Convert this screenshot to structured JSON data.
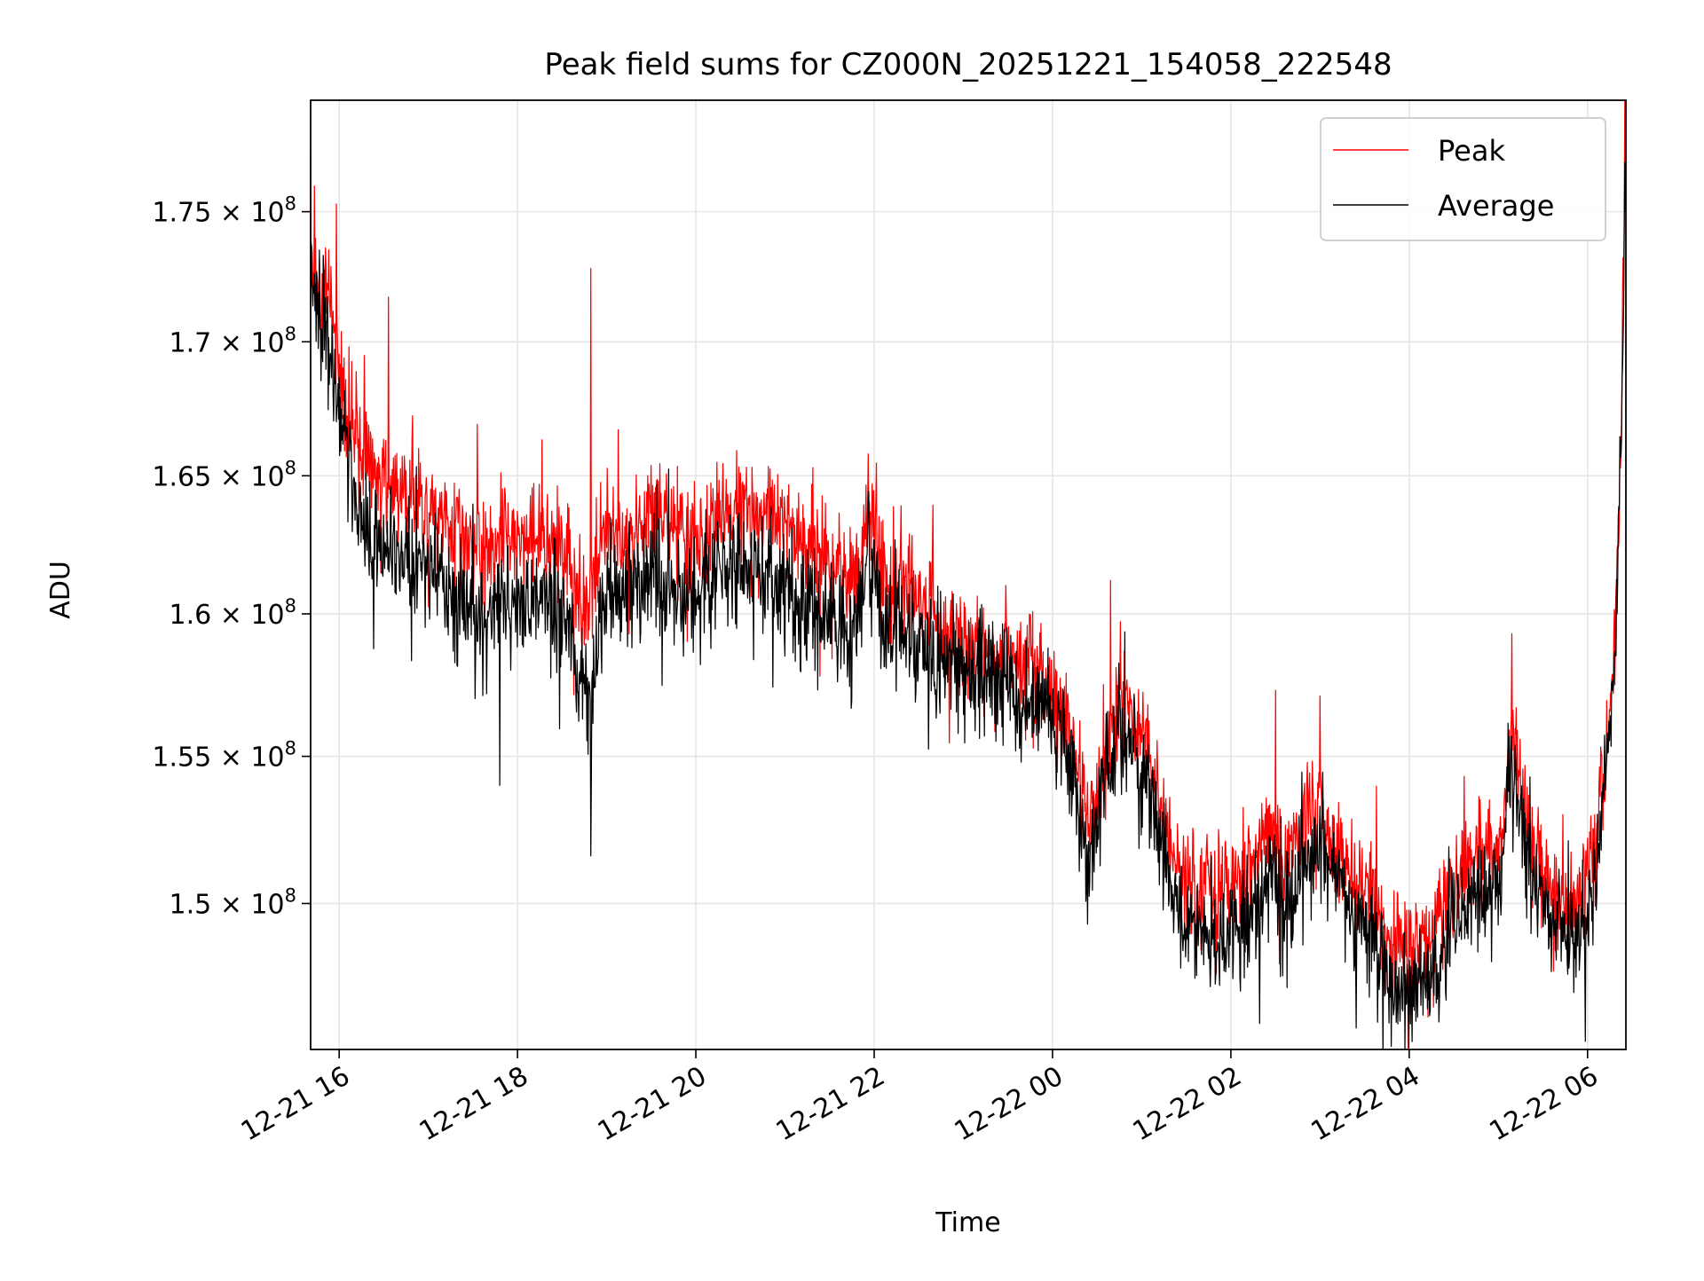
{
  "chart_data": {
    "type": "line",
    "title": "Peak field sums for CZ000N_20251221_154058_222548",
    "xlabel": "Time",
    "ylabel": "ADU",
    "x_unit": "hours since 2025-12-21 00:00",
    "xlim": [
      15.68,
      30.43
    ],
    "ylim": [
      145200000,
      179400000
    ],
    "y_scale": "log",
    "grid": true,
    "legend_position": "upper right",
    "x_ticks": [
      {
        "value": 16,
        "label": "12-21 16"
      },
      {
        "value": 18,
        "label": "12-21 18"
      },
      {
        "value": 20,
        "label": "12-21 20"
      },
      {
        "value": 22,
        "label": "12-21 22"
      },
      {
        "value": 24,
        "label": "12-22 00"
      },
      {
        "value": 26,
        "label": "12-22 02"
      },
      {
        "value": 28,
        "label": "12-22 04"
      },
      {
        "value": 30,
        "label": "12-22 06"
      }
    ],
    "y_ticks": [
      {
        "value": 150000000,
        "mantissa": "1.5"
      },
      {
        "value": 155000000,
        "mantissa": "1.55"
      },
      {
        "value": 160000000,
        "mantissa": "1.6"
      },
      {
        "value": 165000000,
        "mantissa": "1.65"
      },
      {
        "value": 170000000,
        "mantissa": "1.7"
      },
      {
        "value": 175000000,
        "mantissa": "1.75"
      }
    ],
    "y_tick_suffix": "× 10",
    "y_tick_exponent": "8",
    "series": [
      {
        "name": "Peak",
        "color": "#ff0000",
        "noise": 1.2,
        "spikes": [
          [
            15.68,
            177200000
          ],
          [
            15.72,
            176000000
          ],
          [
            15.97,
            175300000
          ],
          [
            16.55,
            171700000
          ],
          [
            17.55,
            166900000
          ],
          [
            18.82,
            172800000
          ],
          [
            20.5,
            165100000
          ],
          [
            21.93,
            165800000
          ],
          [
            24.65,
            161200000
          ],
          [
            26.5,
            157300000
          ],
          [
            27.0,
            157100000
          ],
          [
            29.15,
            159300000
          ],
          [
            30.42,
            179400000
          ]
        ],
        "x": [
          15.68,
          15.75,
          15.85,
          15.93,
          16.0,
          16.15,
          16.3,
          16.5,
          16.8,
          17.1,
          17.3,
          17.6,
          17.8,
          18.0,
          18.3,
          18.55,
          18.7,
          18.8,
          18.95,
          19.2,
          19.5,
          19.8,
          20.0,
          20.3,
          20.6,
          20.9,
          21.2,
          21.5,
          21.8,
          21.93,
          22.1,
          22.4,
          22.7,
          23.0,
          23.3,
          23.6,
          23.9,
          24.1,
          24.25,
          24.4,
          24.55,
          24.75,
          24.9,
          25.05,
          25.15,
          25.4,
          25.6,
          25.8,
          26.0,
          26.2,
          26.45,
          26.6,
          26.8,
          27.0,
          27.2,
          27.4,
          27.6,
          27.8,
          28.0,
          28.2,
          28.4,
          28.6,
          28.8,
          29.0,
          29.15,
          29.35,
          29.55,
          29.75,
          29.95,
          30.1,
          30.2,
          30.3,
          30.38,
          30.43
        ],
        "values": [
          173800000,
          172600000,
          171800000,
          170400000,
          168800000,
          166800000,
          165400000,
          164600000,
          164400000,
          163900000,
          163000000,
          162100000,
          162700000,
          163000000,
          162700000,
          162100000,
          160800000,
          160500000,
          162800000,
          163000000,
          163300000,
          162900000,
          162600000,
          163800000,
          164000000,
          163500000,
          162400000,
          162000000,
          161400000,
          164200000,
          161200000,
          160800000,
          159800000,
          159000000,
          158600000,
          158200000,
          157600000,
          156700000,
          155200000,
          152700000,
          154700000,
          157200000,
          156400000,
          155700000,
          154300000,
          151300000,
          150700000,
          150300000,
          150600000,
          151100000,
          152500000,
          151000000,
          152300000,
          153200000,
          151900000,
          150600000,
          150200000,
          149000000,
          148200000,
          148800000,
          149900000,
          150900000,
          151300000,
          151800000,
          156200000,
          152300000,
          150600000,
          150100000,
          150800000,
          152000000,
          155400000,
          158400000,
          167400000,
          178900000
        ]
      },
      {
        "name": "Average",
        "color": "#000000",
        "noise": 1.25,
        "spikes": [
          [
            18.82,
            151600000
          ],
          [
            17.8,
            154000000
          ],
          [
            21.93,
            164200000
          ],
          [
            27.8,
            145300000
          ]
        ],
        "x": [
          15.68,
          15.75,
          15.85,
          15.93,
          16.0,
          16.15,
          16.3,
          16.5,
          16.8,
          17.1,
          17.3,
          17.6,
          17.8,
          18.0,
          18.3,
          18.55,
          18.7,
          18.8,
          18.95,
          19.2,
          19.5,
          19.8,
          20.0,
          20.3,
          20.6,
          20.9,
          21.2,
          21.5,
          21.8,
          21.93,
          22.1,
          22.4,
          22.7,
          23.0,
          23.3,
          23.6,
          23.9,
          24.1,
          24.25,
          24.4,
          24.55,
          24.75,
          24.9,
          25.05,
          25.15,
          25.4,
          25.6,
          25.8,
          26.0,
          26.2,
          26.45,
          26.6,
          26.8,
          27.0,
          27.2,
          27.4,
          27.6,
          27.8,
          28.0,
          28.2,
          28.4,
          28.6,
          28.8,
          29.0,
          29.15,
          29.35,
          29.55,
          29.75,
          29.95,
          30.1,
          30.2,
          30.3,
          30.38,
          30.43
        ],
        "values": [
          172800000,
          171600000,
          170800000,
          169200000,
          167400000,
          164800000,
          163000000,
          162200000,
          162100000,
          161500000,
          160500000,
          159600000,
          160100000,
          160800000,
          160300000,
          159600000,
          157600000,
          156200000,
          160600000,
          160900000,
          161200000,
          160700000,
          160400000,
          161600000,
          161800000,
          161200000,
          160200000,
          159800000,
          159300000,
          162400000,
          159700000,
          159200000,
          158300000,
          158000000,
          157600000,
          157100000,
          156600000,
          155700000,
          153800000,
          151300000,
          153500000,
          156000000,
          155300000,
          154600000,
          152800000,
          149600000,
          149000000,
          148700000,
          149000000,
          149400000,
          150900000,
          149600000,
          150800000,
          151900000,
          150400000,
          149300000,
          148800000,
          147300000,
          146700000,
          147400000,
          148700000,
          149700000,
          150200000,
          150800000,
          154900000,
          151000000,
          149300000,
          148700000,
          149600000,
          151000000,
          154500000,
          157900000,
          166400000,
          177800000
        ]
      }
    ]
  }
}
